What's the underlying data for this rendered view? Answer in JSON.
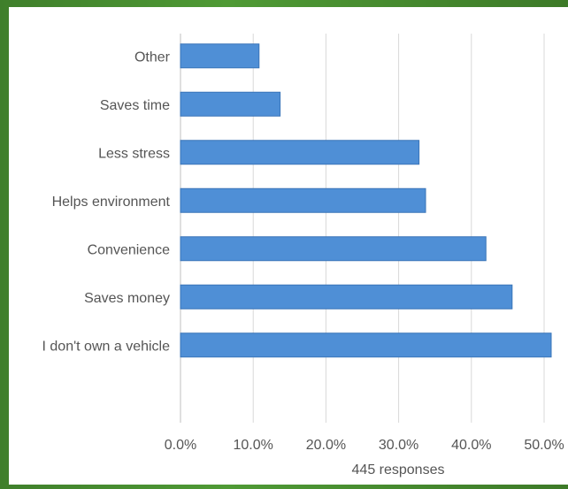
{
  "chart_data": {
    "type": "bar",
    "orientation": "horizontal",
    "categories": [
      "Other",
      "Saves time",
      "Less stress",
      "Helps environment",
      "Convenience",
      "Saves money",
      "I don't own a vehicle"
    ],
    "values": [
      10.8,
      13.7,
      32.8,
      33.7,
      42.0,
      45.6,
      51.0
    ],
    "value_unit": "%",
    "xlim": [
      0,
      50
    ],
    "xticks": [
      "0.0%",
      "10.0%",
      "20.0%",
      "30.0%",
      "40.0%",
      "50.0%"
    ],
    "xlabel": "445 responses",
    "grid": "vertical",
    "bar_color": "#4f8fd6",
    "bar_edge_color": "#3a75b8"
  }
}
